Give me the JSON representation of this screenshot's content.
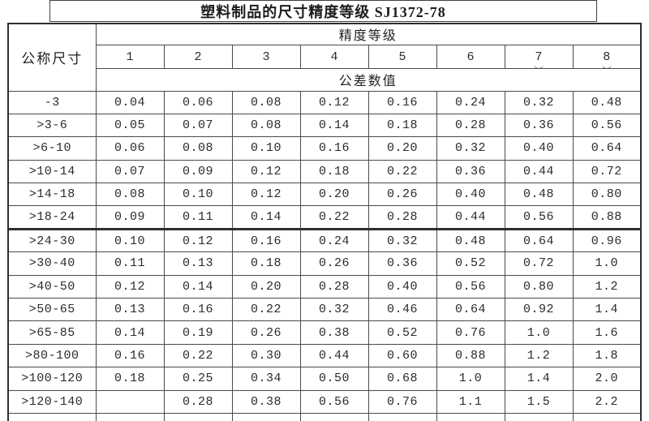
{
  "title": {
    "text": "塑料制品的尺寸精度等级 SJ1372-78"
  },
  "colors": {
    "border": "#4a4a4a",
    "heavy_border": "#2e2e2e",
    "text": "#2b2b2b",
    "background": "#ffffff"
  },
  "table": {
    "corner_header": "公称尺寸",
    "group_header": "精度等级",
    "values_header": "公差数值",
    "grade_columns": [
      {
        "label": "1",
        "underline_mark": false
      },
      {
        "label": "2",
        "underline_mark": false
      },
      {
        "label": "3",
        "underline_mark": false
      },
      {
        "label": "4",
        "underline_mark": false
      },
      {
        "label": "5",
        "underline_mark": false
      },
      {
        "label": "6",
        "underline_mark": false
      },
      {
        "label": "7",
        "underline_mark": true
      },
      {
        "label": "8",
        "underline_mark": true
      }
    ],
    "rows": [
      {
        "size": "-3",
        "values": [
          "0.04",
          "0.06",
          "0.08",
          "0.12",
          "0.16",
          "0.24",
          "0.32",
          "0.48"
        ]
      },
      {
        "size": ">3-6",
        "values": [
          "0.05",
          "0.07",
          "0.08",
          "0.14",
          "0.18",
          "0.28",
          "0.36",
          "0.56"
        ]
      },
      {
        "size": ">6-10",
        "values": [
          "0.06",
          "0.08",
          "0.10",
          "0.16",
          "0.20",
          "0.32",
          "0.40",
          "0.64"
        ]
      },
      {
        "size": ">10-14",
        "values": [
          "0.07",
          "0.09",
          "0.12",
          "0.18",
          "0.22",
          "0.36",
          "0.44",
          "0.72"
        ]
      },
      {
        "size": ">14-18",
        "values": [
          "0.08",
          "0.10",
          "0.12",
          "0.20",
          "0.26",
          "0.40",
          "0.48",
          "0.80"
        ]
      },
      {
        "size": ">18-24",
        "values": [
          "0.09",
          "0.11",
          "0.14",
          "0.22",
          "0.28",
          "0.44",
          "0.56",
          "0.88"
        ]
      },
      {
        "size": ">24-30",
        "values": [
          "0.10",
          "0.12",
          "0.16",
          "0.24",
          "0.32",
          "0.48",
          "0.64",
          "0.96"
        ]
      },
      {
        "size": ">30-40",
        "values": [
          "0.11",
          "0.13",
          "0.18",
          "0.26",
          "0.36",
          "0.52",
          "0.72",
          "1.0"
        ]
      },
      {
        "size": ">40-50",
        "values": [
          "0.12",
          "0.14",
          "0.20",
          "0.28",
          "0.40",
          "0.56",
          "0.80",
          "1.2"
        ]
      },
      {
        "size": ">50-65",
        "values": [
          "0.13",
          "0.16",
          "0.22",
          "0.32",
          "0.46",
          "0.64",
          "0.92",
          "1.4"
        ]
      },
      {
        "size": ">65-85",
        "values": [
          "0.14",
          "0.19",
          "0.26",
          "0.38",
          "0.52",
          "0.76",
          "1.0",
          "1.6"
        ]
      },
      {
        "size": ">80-100",
        "values": [
          "0.16",
          "0.22",
          "0.30",
          "0.44",
          "0.60",
          "0.88",
          "1.2",
          "1.8"
        ]
      },
      {
        "size": ">100-120",
        "values": [
          "0.18",
          "0.25",
          "0.34",
          "0.50",
          "0.68",
          "1.0",
          "1.4",
          "2.0"
        ]
      },
      {
        "size": ">120-140",
        "values": [
          "",
          "0.28",
          "0.38",
          "0.56",
          "0.76",
          "1.1",
          "1.5",
          "2.2"
        ]
      }
    ]
  }
}
